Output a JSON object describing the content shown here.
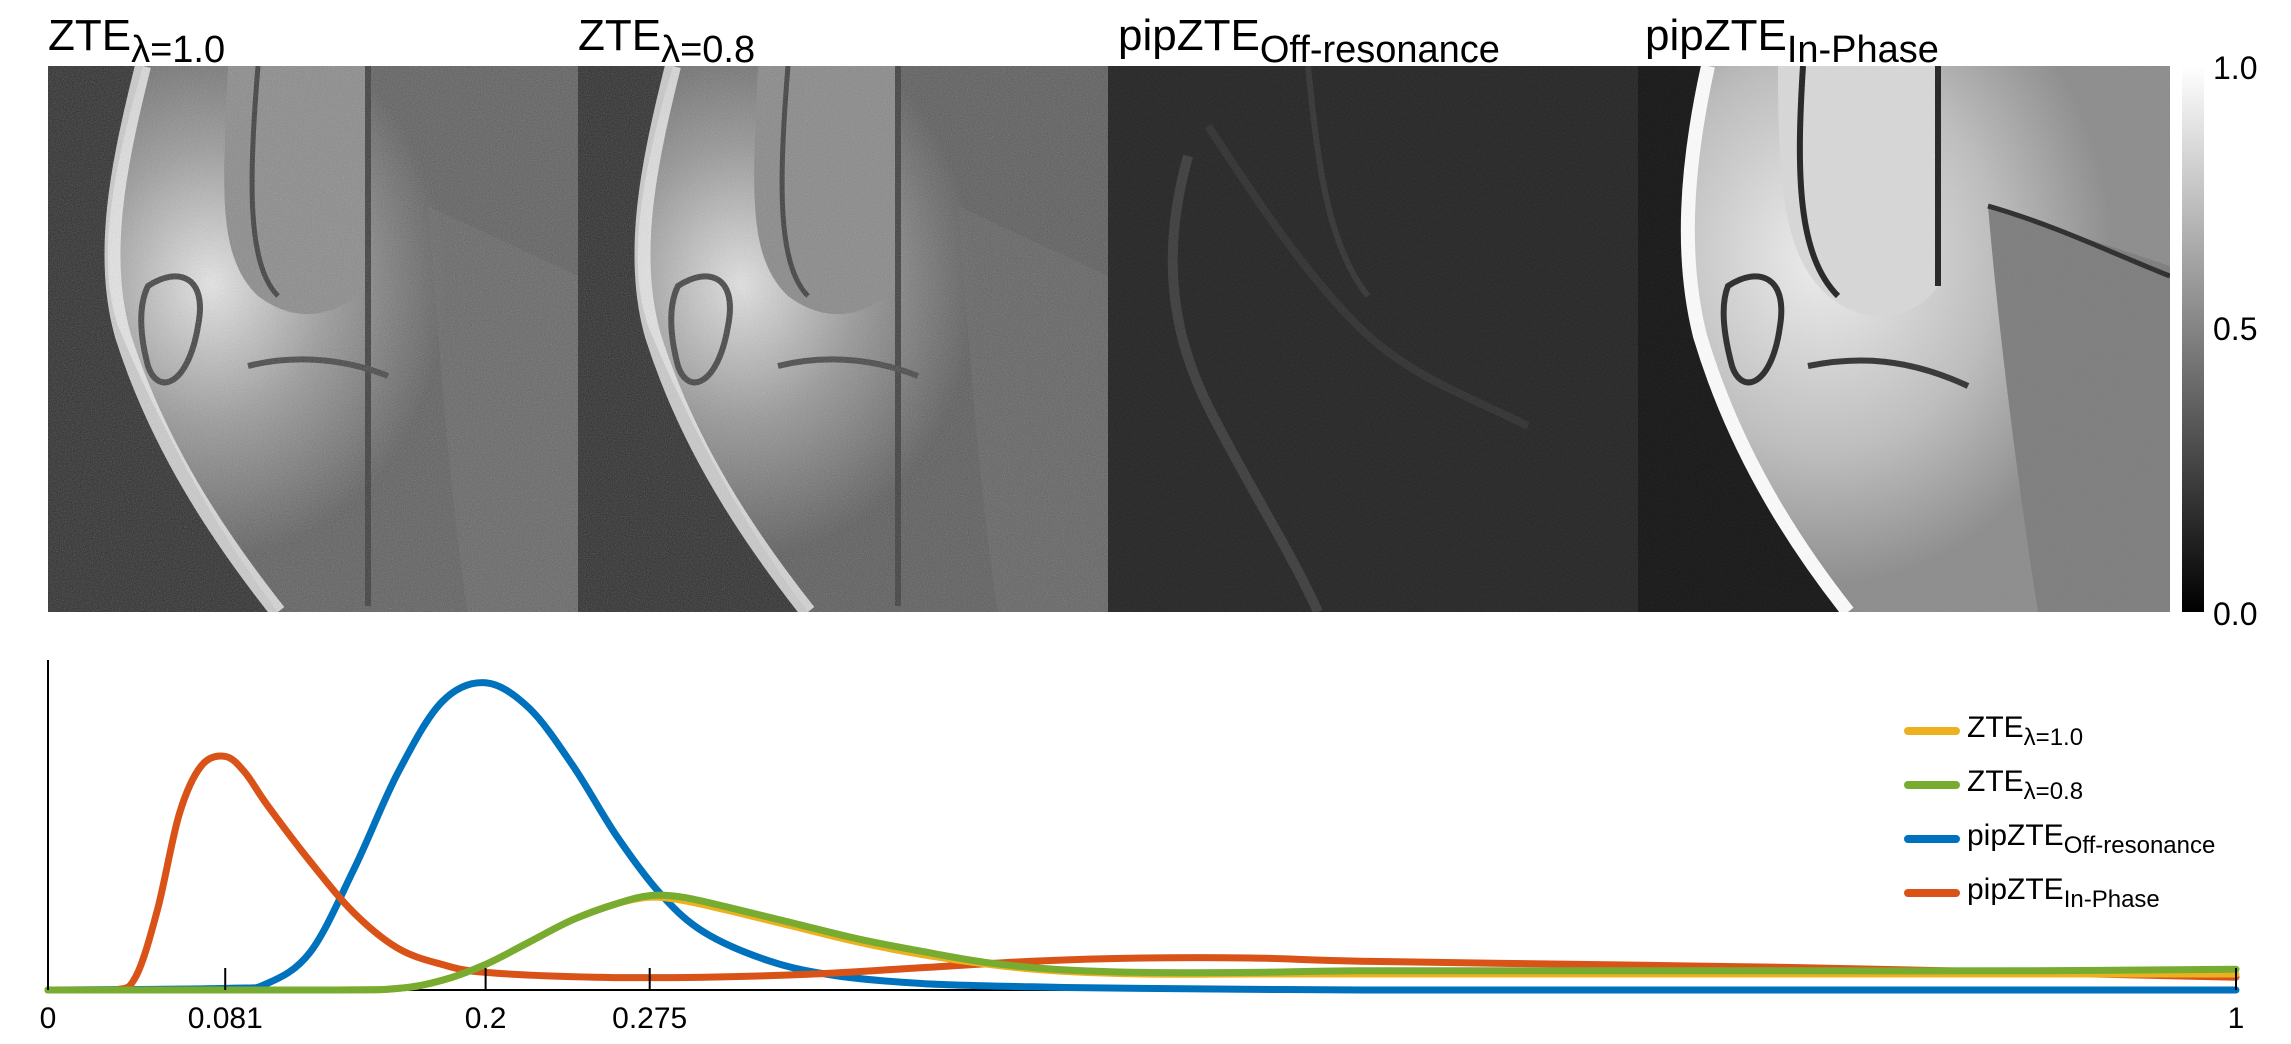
{
  "panels": [
    {
      "name": "ZTE",
      "sub": "λ=1.0"
    },
    {
      "name": "ZTE",
      "sub": "λ=0.8"
    },
    {
      "name": "pipZTE",
      "sub": "Off-resonance"
    },
    {
      "name": "pipZTE",
      "sub": "In-Phase"
    }
  ],
  "colorbar": {
    "max": "1.0",
    "mid": "0.5",
    "min": "0.0",
    "colors": {
      "top": "#ffffff",
      "bottom": "#000000"
    }
  },
  "chart_data": {
    "type": "line",
    "title": "",
    "xlabel": "",
    "ylabel": "",
    "xlim": [
      0,
      1
    ],
    "ylim": [
      0,
      1
    ],
    "grid": false,
    "legend_position": "top-right",
    "xticks": [
      0,
      0.081,
      0.2,
      0.275,
      1
    ],
    "xtick_labels": [
      "0",
      "0.081",
      "0.2",
      "0.275",
      "1"
    ],
    "series": [
      {
        "name": "ZTE",
        "name_sub": "λ=1.0",
        "color": "#EDB120",
        "x": [
          0,
          0.13,
          0.16,
          0.18,
          0.2,
          0.22,
          0.24,
          0.26,
          0.275,
          0.29,
          0.31,
          0.34,
          0.37,
          0.4,
          0.43,
          0.46,
          0.5,
          0.55,
          0.6,
          0.7,
          0.8,
          0.9,
          1.0
        ],
        "y": [
          0,
          0,
          0.005,
          0.03,
          0.08,
          0.15,
          0.22,
          0.27,
          0.29,
          0.28,
          0.25,
          0.2,
          0.15,
          0.11,
          0.08,
          0.06,
          0.05,
          0.05,
          0.05,
          0.05,
          0.05,
          0.05,
          0.05
        ]
      },
      {
        "name": "ZTE",
        "name_sub": "λ=0.8",
        "color": "#77AC30",
        "x": [
          0,
          0.13,
          0.16,
          0.18,
          0.2,
          0.22,
          0.24,
          0.26,
          0.275,
          0.29,
          0.31,
          0.34,
          0.37,
          0.4,
          0.43,
          0.46,
          0.5,
          0.55,
          0.6,
          0.7,
          0.8,
          0.9,
          1.0
        ],
        "y": [
          0,
          0,
          0.005,
          0.03,
          0.08,
          0.15,
          0.22,
          0.27,
          0.295,
          0.29,
          0.26,
          0.21,
          0.16,
          0.12,
          0.085,
          0.065,
          0.055,
          0.055,
          0.06,
          0.06,
          0.06,
          0.06,
          0.065
        ]
      },
      {
        "name": "pipZTE",
        "name_sub": "Off-resonance",
        "color": "#0072BD",
        "x": [
          0,
          0.081,
          0.1,
          0.12,
          0.14,
          0.16,
          0.18,
          0.2,
          0.22,
          0.24,
          0.26,
          0.28,
          0.3,
          0.33,
          0.36,
          0.4,
          0.45,
          0.5,
          0.6,
          0.7,
          0.8,
          0.9,
          1.0
        ],
        "y": [
          0,
          0.005,
          0.02,
          0.12,
          0.38,
          0.68,
          0.9,
          0.96,
          0.88,
          0.7,
          0.48,
          0.3,
          0.18,
          0.09,
          0.045,
          0.02,
          0.01,
          0.005,
          0,
          0,
          0,
          0,
          0
        ]
      },
      {
        "name": "pipZTE",
        "name_sub": "In-Phase",
        "color": "#D95319",
        "x": [
          0,
          0.03,
          0.04,
          0.05,
          0.06,
          0.07,
          0.081,
          0.09,
          0.1,
          0.12,
          0.14,
          0.16,
          0.18,
          0.2,
          0.25,
          0.3,
          0.35,
          0.4,
          0.45,
          0.5,
          0.55,
          0.6,
          0.7,
          0.8,
          0.9,
          1.0
        ],
        "y": [
          0,
          0,
          0.04,
          0.25,
          0.55,
          0.7,
          0.73,
          0.68,
          0.58,
          0.4,
          0.24,
          0.13,
          0.08,
          0.055,
          0.04,
          0.04,
          0.05,
          0.07,
          0.09,
          0.1,
          0.1,
          0.09,
          0.08,
          0.07,
          0.055,
          0.04
        ]
      }
    ]
  }
}
